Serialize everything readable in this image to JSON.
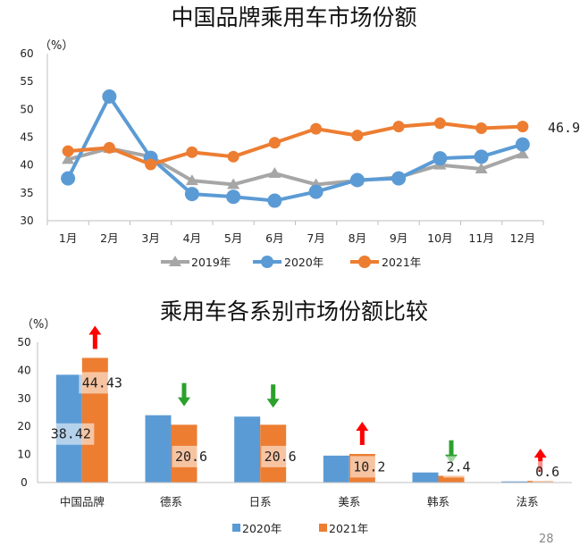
{
  "chart_data": [
    {
      "type": "line",
      "title": "中国品牌乘用车市场份额",
      "unit_label": "（%）",
      "categories": [
        "1月",
        "2月",
        "3月",
        "4月",
        "5月",
        "6月",
        "7月",
        "8月",
        "9月",
        "10月",
        "11月",
        "12月"
      ],
      "ylim": [
        30,
        60
      ],
      "yticks": [
        30,
        35,
        40,
        45,
        50,
        55,
        60
      ],
      "grid": false,
      "legend_position": "bottom",
      "series": [
        {
          "name": "2019年",
          "color": "#a6a6a6",
          "marker": "triangle",
          "values": [
            41,
            43,
            41.5,
            37.2,
            36.5,
            38.5,
            36.5,
            37.2,
            37.8,
            40.0,
            39.3,
            42.0
          ]
        },
        {
          "name": "2020年",
          "color": "#5b9bd5",
          "marker": "circle",
          "values": [
            37.6,
            52.3,
            41.3,
            34.8,
            34.3,
            33.6,
            35.2,
            37.3,
            37.6,
            41.2,
            41.5,
            43.7
          ]
        },
        {
          "name": "2021年",
          "color": "#ed7d31",
          "marker": "circle",
          "values": [
            42.5,
            43.1,
            40.1,
            42.3,
            41.5,
            44.0,
            46.5,
            45.3,
            46.9,
            47.5,
            46.6,
            46.9
          ]
        }
      ],
      "end_label": "46.9"
    },
    {
      "type": "bar",
      "title": "乘用车各系别市场份额比较",
      "unit_label": "（%）",
      "categories": [
        "中国品牌",
        "德系",
        "日系",
        "美系",
        "韩系",
        "法系"
      ],
      "ylim": [
        0,
        50
      ],
      "yticks": [
        0,
        10,
        20,
        30,
        40,
        50
      ],
      "grid": false,
      "legend_position": "bottom",
      "series": [
        {
          "name": "2020年",
          "color": "#5b9bd5",
          "values": [
            38.42,
            24.0,
            23.5,
            9.6,
            3.6,
            0.4
          ]
        },
        {
          "name": "2021年",
          "color": "#ed7d31",
          "values": [
            44.43,
            20.6,
            20.6,
            10.2,
            2.4,
            0.6
          ]
        }
      ],
      "value_labels": [
        "38.42",
        "44.43",
        "20.6",
        "20.6",
        "10.2",
        "2.4",
        "0.6"
      ],
      "trend_arrows": [
        "up",
        "down",
        "down",
        "up",
        "down",
        "up"
      ],
      "arrow_colors": {
        "up": "#ff0000",
        "down": "#2ca02c"
      }
    }
  ],
  "page_number": "28"
}
